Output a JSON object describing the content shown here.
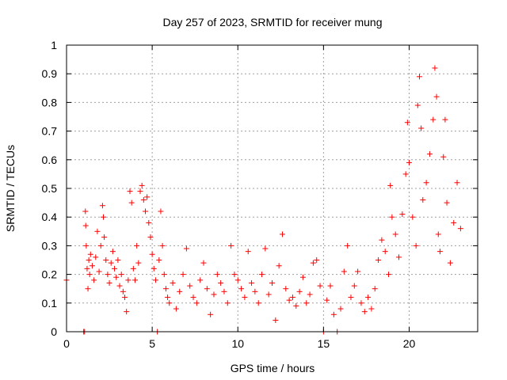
{
  "chart_data": {
    "type": "scatter",
    "title": "Day 257 of 2023, SRMTID for receiver mung",
    "xlabel": "GPS time / hours",
    "ylabel": "SRMTID / TECUs",
    "xlim": [
      0,
      24
    ],
    "ylim": [
      0,
      1
    ],
    "x_ticks": [
      0,
      5,
      10,
      15,
      20
    ],
    "y_ticks": [
      0,
      0.1,
      0.2,
      0.3,
      0.4,
      0.5,
      0.6,
      0.7,
      0.8,
      0.9,
      1
    ],
    "x_tick_labels": [
      "0",
      "5",
      "10",
      "15",
      "20"
    ],
    "y_tick_labels": [
      "0",
      "0.1",
      "0.2",
      "0.3",
      "0.4",
      "0.5",
      "0.6",
      "0.7",
      "0.8",
      "0.9",
      "1"
    ],
    "grid": true,
    "marker": "+",
    "marker_color": "#ff0000",
    "series": [
      {
        "name": "SRMTID",
        "points": [
          [
            0.0,
            0.18
          ],
          [
            1.0,
            0.0
          ],
          [
            1.05,
            0.0
          ],
          [
            1.1,
            0.42
          ],
          [
            1.12,
            0.37
          ],
          [
            1.15,
            0.3
          ],
          [
            1.2,
            0.22
          ],
          [
            1.25,
            0.15
          ],
          [
            1.3,
            0.25
          ],
          [
            1.35,
            0.2
          ],
          [
            1.4,
            0.27
          ],
          [
            1.5,
            0.23
          ],
          [
            1.6,
            0.18
          ],
          [
            1.7,
            0.26
          ],
          [
            1.8,
            0.35
          ],
          [
            1.9,
            0.21
          ],
          [
            2.0,
            0.3
          ],
          [
            2.1,
            0.44
          ],
          [
            2.15,
            0.4
          ],
          [
            2.2,
            0.33
          ],
          [
            2.3,
            0.25
          ],
          [
            2.4,
            0.2
          ],
          [
            2.5,
            0.17
          ],
          [
            2.6,
            0.24
          ],
          [
            2.7,
            0.28
          ],
          [
            2.8,
            0.22
          ],
          [
            2.9,
            0.19
          ],
          [
            3.0,
            0.25
          ],
          [
            3.1,
            0.16
          ],
          [
            3.2,
            0.2
          ],
          [
            3.3,
            0.14
          ],
          [
            3.4,
            0.12
          ],
          [
            3.5,
            0.07
          ],
          [
            3.6,
            0.18
          ],
          [
            3.7,
            0.49
          ],
          [
            3.8,
            0.45
          ],
          [
            3.9,
            0.22
          ],
          [
            4.0,
            0.18
          ],
          [
            4.1,
            0.3
          ],
          [
            4.2,
            0.24
          ],
          [
            4.3,
            0.49
          ],
          [
            4.4,
            0.51
          ],
          [
            4.5,
            0.46
          ],
          [
            4.6,
            0.42
          ],
          [
            4.7,
            0.47
          ],
          [
            4.8,
            0.38
          ],
          [
            4.9,
            0.33
          ],
          [
            5.0,
            0.27
          ],
          [
            5.1,
            0.22
          ],
          [
            5.2,
            0.18
          ],
          [
            5.3,
            0.0
          ],
          [
            5.4,
            0.25
          ],
          [
            5.5,
            0.42
          ],
          [
            5.6,
            0.3
          ],
          [
            5.7,
            0.2
          ],
          [
            5.8,
            0.15
          ],
          [
            5.9,
            0.12
          ],
          [
            6.0,
            0.1
          ],
          [
            6.2,
            0.17
          ],
          [
            6.4,
            0.08
          ],
          [
            6.6,
            0.14
          ],
          [
            6.8,
            0.2
          ],
          [
            7.0,
            0.29
          ],
          [
            7.2,
            0.16
          ],
          [
            7.4,
            0.12
          ],
          [
            7.6,
            0.1
          ],
          [
            7.8,
            0.18
          ],
          [
            8.0,
            0.24
          ],
          [
            8.2,
            0.15
          ],
          [
            8.4,
            0.06
          ],
          [
            8.6,
            0.13
          ],
          [
            8.8,
            0.2
          ],
          [
            9.0,
            0.17
          ],
          [
            9.2,
            0.14
          ],
          [
            9.4,
            0.1
          ],
          [
            9.6,
            0.3
          ],
          [
            9.8,
            0.2
          ],
          [
            10.0,
            0.18
          ],
          [
            10.2,
            0.15
          ],
          [
            10.4,
            0.12
          ],
          [
            10.6,
            0.28
          ],
          [
            10.8,
            0.17
          ],
          [
            11.0,
            0.14
          ],
          [
            11.2,
            0.1
          ],
          [
            11.4,
            0.2
          ],
          [
            11.6,
            0.29
          ],
          [
            11.8,
            0.13
          ],
          [
            12.0,
            0.17
          ],
          [
            12.2,
            0.04
          ],
          [
            12.4,
            0.23
          ],
          [
            12.6,
            0.34
          ],
          [
            12.8,
            0.15
          ],
          [
            13.0,
            0.11
          ],
          [
            13.2,
            0.12
          ],
          [
            13.4,
            0.09
          ],
          [
            13.6,
            0.14
          ],
          [
            13.8,
            0.19
          ],
          [
            14.0,
            0.1
          ],
          [
            14.2,
            0.13
          ],
          [
            14.4,
            0.24
          ],
          [
            14.6,
            0.25
          ],
          [
            14.8,
            0.16
          ],
          [
            15.0,
            0.0
          ],
          [
            15.2,
            0.11
          ],
          [
            15.4,
            0.16
          ],
          [
            15.6,
            0.06
          ],
          [
            15.8,
            0.0
          ],
          [
            16.0,
            0.08
          ],
          [
            16.2,
            0.21
          ],
          [
            16.4,
            0.3
          ],
          [
            16.6,
            0.12
          ],
          [
            16.8,
            0.16
          ],
          [
            17.0,
            0.21
          ],
          [
            17.2,
            0.1
          ],
          [
            17.4,
            0.07
          ],
          [
            17.6,
            0.12
          ],
          [
            17.8,
            0.08
          ],
          [
            18.0,
            0.15
          ],
          [
            18.2,
            0.25
          ],
          [
            18.4,
            0.32
          ],
          [
            18.6,
            0.28
          ],
          [
            18.8,
            0.2
          ],
          [
            18.9,
            0.51
          ],
          [
            19.0,
            0.4
          ],
          [
            19.2,
            0.34
          ],
          [
            19.4,
            0.26
          ],
          [
            19.6,
            0.41
          ],
          [
            19.8,
            0.55
          ],
          [
            19.9,
            0.73
          ],
          [
            20.0,
            0.59
          ],
          [
            20.2,
            0.4
          ],
          [
            20.4,
            0.3
          ],
          [
            20.5,
            0.79
          ],
          [
            20.6,
            0.89
          ],
          [
            20.7,
            0.71
          ],
          [
            20.8,
            0.46
          ],
          [
            21.0,
            0.52
          ],
          [
            21.2,
            0.62
          ],
          [
            21.4,
            0.74
          ],
          [
            21.5,
            0.92
          ],
          [
            21.6,
            0.82
          ],
          [
            21.7,
            0.34
          ],
          [
            21.8,
            0.28
          ],
          [
            22.0,
            0.61
          ],
          [
            22.1,
            0.74
          ],
          [
            22.2,
            0.45
          ],
          [
            22.4,
            0.24
          ],
          [
            22.6,
            0.38
          ],
          [
            22.8,
            0.52
          ],
          [
            23.0,
            0.36
          ]
        ]
      }
    ]
  }
}
